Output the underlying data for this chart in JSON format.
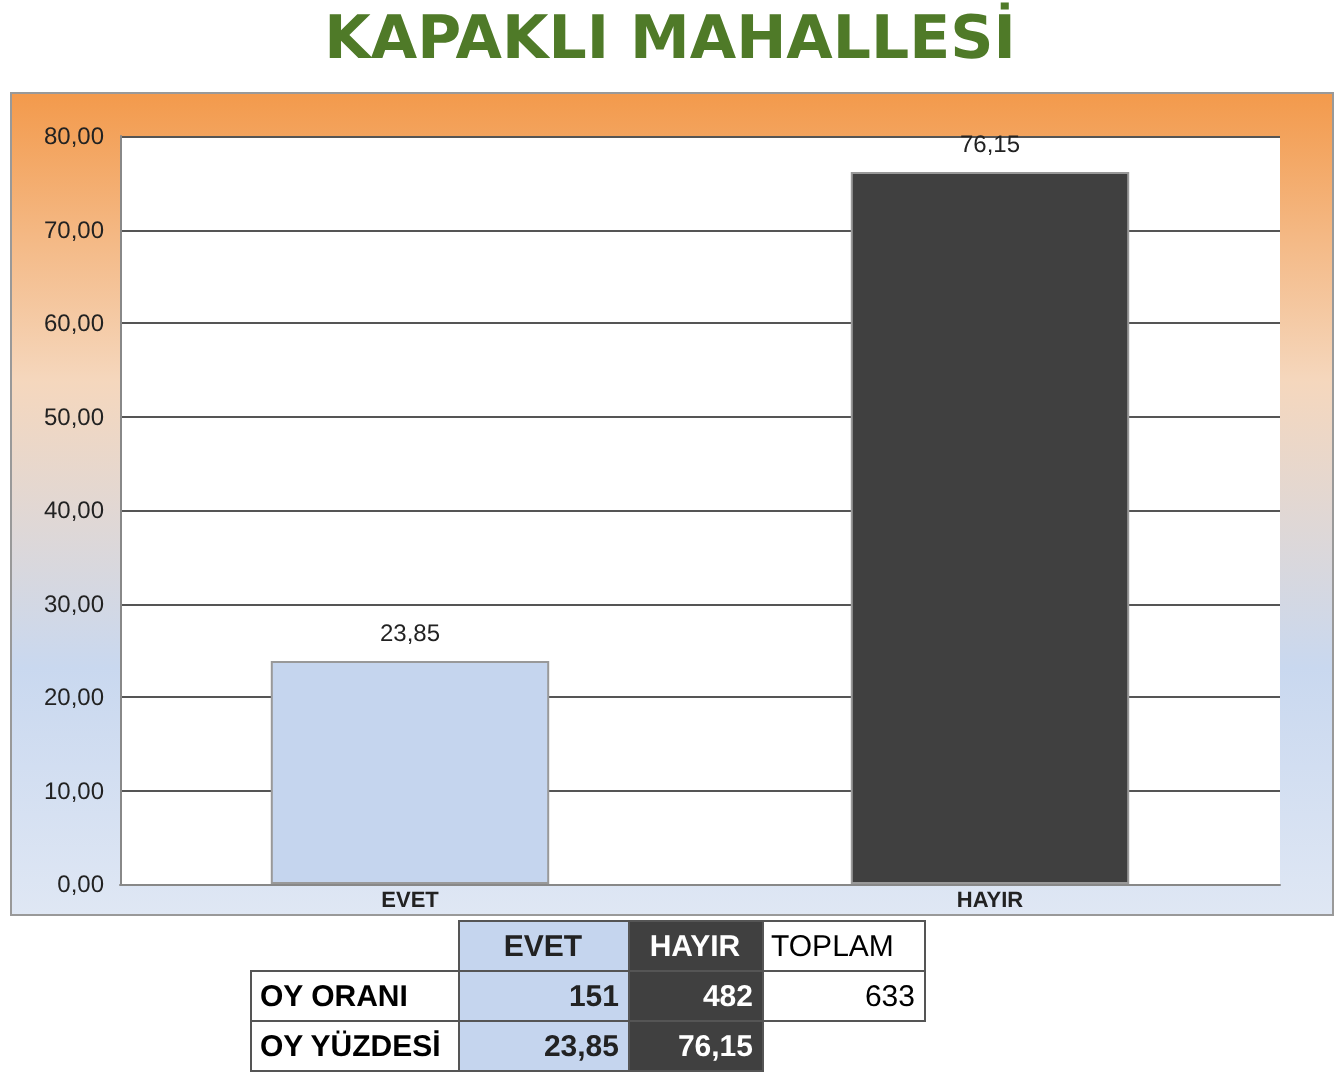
{
  "chart_data": {
    "type": "bar",
    "title": "KAPAKLI MAHALLESİ",
    "categories": [
      "EVET",
      "HAYIR"
    ],
    "values": [
      23.85,
      76.15
    ],
    "value_labels": [
      "23,85",
      "76,15"
    ],
    "colors": [
      "#c5d5ee",
      "#404040"
    ],
    "ylim": [
      0,
      80
    ],
    "yticks": [
      {
        "value": 0,
        "label": "0,00"
      },
      {
        "value": 10,
        "label": "10,00"
      },
      {
        "value": 20,
        "label": "20,00"
      },
      {
        "value": 30,
        "label": "30,00"
      },
      {
        "value": 40,
        "label": "40,00"
      },
      {
        "value": 50,
        "label": "50,00"
      },
      {
        "value": 60,
        "label": "60,00"
      },
      {
        "value": 70,
        "label": "70,00"
      },
      {
        "value": 80,
        "label": "80,00"
      }
    ],
    "grid": "y",
    "annotations": [
      "TOPLAM",
      "OY ORANI",
      "151",
      "482",
      "633",
      "OY YÜZDESİ"
    ]
  }
}
